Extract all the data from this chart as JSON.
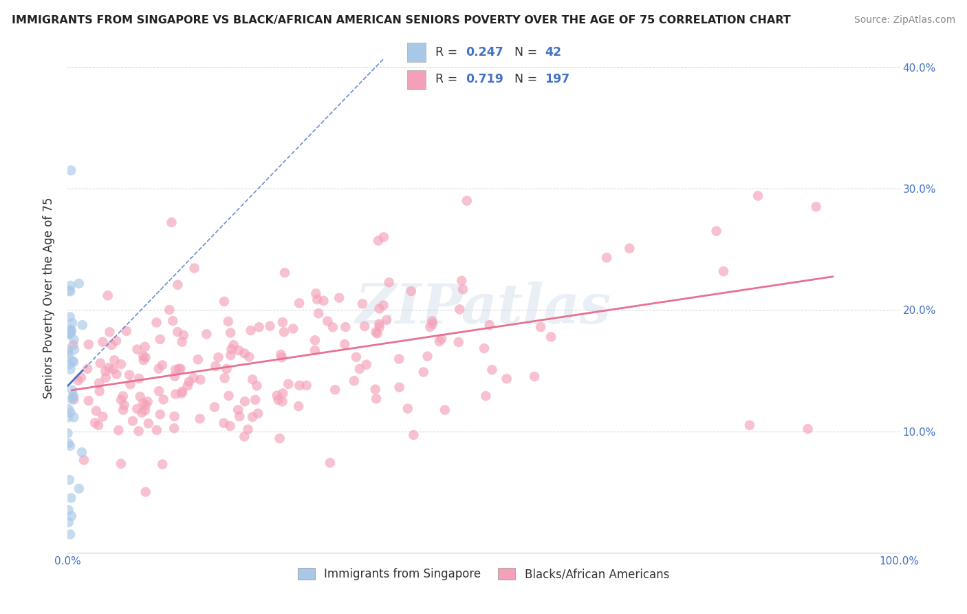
{
  "title": "IMMIGRANTS FROM SINGAPORE VS BLACK/AFRICAN AMERICAN SENIORS POVERTY OVER THE AGE OF 75 CORRELATION CHART",
  "source": "Source: ZipAtlas.com",
  "ylabel": "Seniors Poverty Over the Age of 75",
  "xlim": [
    0,
    1.0
  ],
  "ylim": [
    0,
    0.42
  ],
  "xticks": [
    0.0,
    0.2,
    0.4,
    0.6,
    0.8,
    1.0
  ],
  "xticklabels": [
    "0.0%",
    "",
    "",
    "",
    "",
    "100.0%"
  ],
  "yticks": [
    0.0,
    0.1,
    0.2,
    0.3,
    0.4
  ],
  "right_yticklabels": [
    "",
    "10.0%",
    "20.0%",
    "30.0%",
    "40.0%"
  ],
  "blue_R": 0.247,
  "blue_N": 42,
  "pink_R": 0.719,
  "pink_N": 197,
  "blue_color": "#a8c8e8",
  "pink_color": "#f4a0b8",
  "blue_line_color": "#4472c4",
  "pink_line_color": "#e87090",
  "legend_label_blue": "Immigrants from Singapore",
  "legend_label_pink": "Blacks/African Americans",
  "watermark": "ZIPatlas",
  "background_color": "#ffffff",
  "grid_color": "#cccccc",
  "tick_label_color": "#4472c4",
  "title_color": "#222222",
  "source_color": "#888888"
}
